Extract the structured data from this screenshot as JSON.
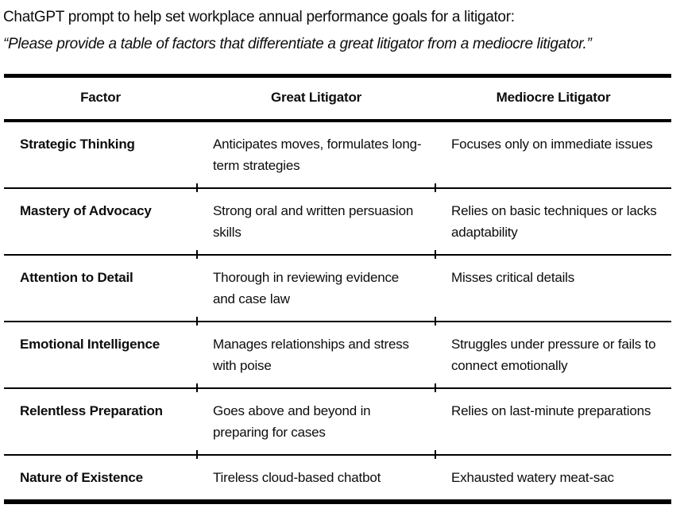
{
  "intro": {
    "line1": "ChatGPT prompt to help set workplace annual performance goals for a litigator:",
    "line2": "“Please provide a table of factors that differentiate a great litigator from a mediocre litigator.”"
  },
  "table": {
    "columns": {
      "factor": "Factor",
      "great": "Great Litigator",
      "mediocre": "Mediocre Litigator"
    },
    "rows": [
      {
        "factor": "Strategic Thinking",
        "great": "Anticipates moves, formulates long-term strategies",
        "mediocre": "Focuses only on immediate issues"
      },
      {
        "factor": "Mastery of Advocacy",
        "great": "Strong oral and written persuasion skills",
        "mediocre": "Relies on basic techniques or lacks adaptability"
      },
      {
        "factor": "Attention to Detail",
        "great": "Thorough in reviewing evidence and case law",
        "mediocre": "Misses critical details"
      },
      {
        "factor": "Emotional Intelligence",
        "great": "Manages relationships and stress with poise",
        "mediocre": "Struggles under pressure or fails to connect emotionally"
      },
      {
        "factor": "Relentless Preparation",
        "great": "Goes above and beyond in preparing for cases",
        "mediocre": "Relies on last-minute preparations"
      },
      {
        "factor": "Nature of Existence",
        "great": "Tireless cloud-based chatbot",
        "mediocre": "Exhausted watery meat-sac"
      }
    ]
  }
}
